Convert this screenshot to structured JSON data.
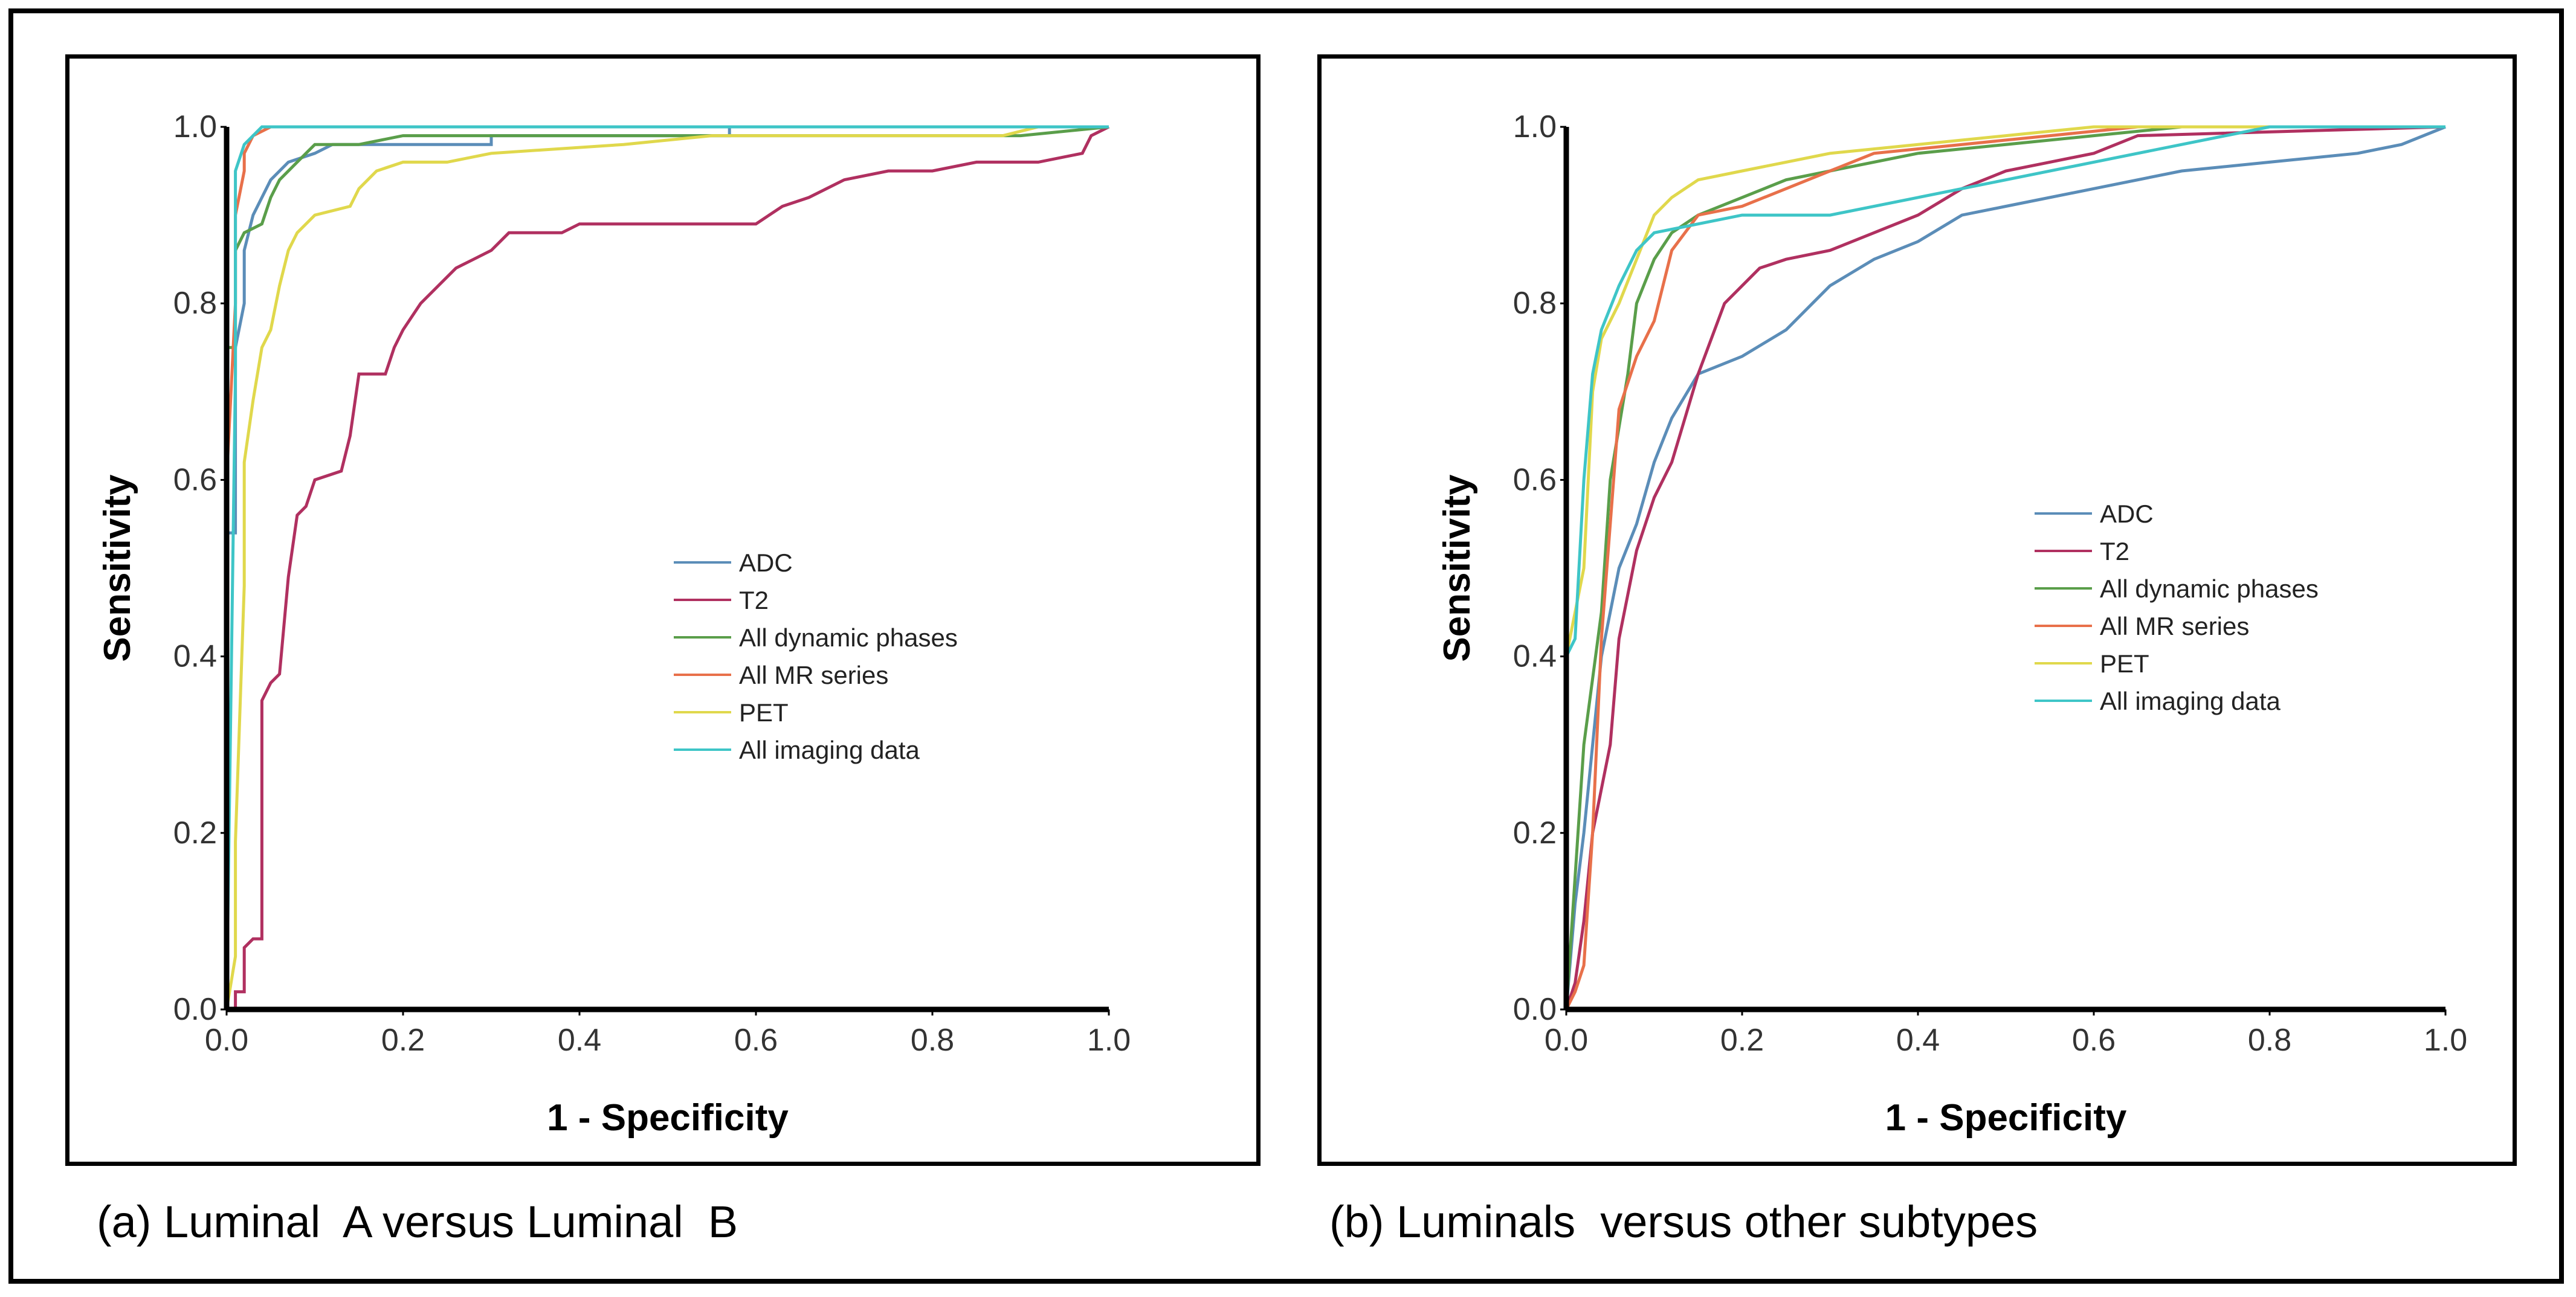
{
  "chart_data": [
    {
      "type": "line",
      "title": "",
      "caption": "(a) Luminal  A versus Luminal  B",
      "xlabel": "1 - Specificity",
      "ylabel": "Sensitivity",
      "xlim": [
        0,
        1
      ],
      "ylim": [
        0,
        1
      ],
      "xticks": [
        "0.0",
        "0.2",
        "0.4",
        "0.6",
        "0.8",
        "1.0"
      ],
      "yticks": [
        "0.0",
        "0.2",
        "0.4",
        "0.6",
        "0.8",
        "1.0"
      ],
      "legend_position": "center-right",
      "series": [
        {
          "name": "ADC",
          "color": "#5b8db8",
          "points": [
            [
              0,
              0
            ],
            [
              0,
              0.54
            ],
            [
              0.01,
              0.54
            ],
            [
              0.01,
              0.75
            ],
            [
              0.02,
              0.8
            ],
            [
              0.02,
              0.86
            ],
            [
              0.03,
              0.9
            ],
            [
              0.05,
              0.94
            ],
            [
              0.07,
              0.96
            ],
            [
              0.1,
              0.97
            ],
            [
              0.12,
              0.98
            ],
            [
              0.3,
              0.98
            ],
            [
              0.3,
              0.99
            ],
            [
              0.57,
              0.99
            ],
            [
              0.57,
              1.0
            ],
            [
              1,
              1
            ]
          ]
        },
        {
          "name": "T2",
          "color": "#b03060",
          "points": [
            [
              0,
              0
            ],
            [
              0.01,
              0
            ],
            [
              0.01,
              0.02
            ],
            [
              0.02,
              0.02
            ],
            [
              0.02,
              0.07
            ],
            [
              0.03,
              0.08
            ],
            [
              0.04,
              0.08
            ],
            [
              0.04,
              0.35
            ],
            [
              0.05,
              0.37
            ],
            [
              0.06,
              0.38
            ],
            [
              0.07,
              0.49
            ],
            [
              0.08,
              0.56
            ],
            [
              0.09,
              0.57
            ],
            [
              0.1,
              0.6
            ],
            [
              0.13,
              0.61
            ],
            [
              0.14,
              0.65
            ],
            [
              0.15,
              0.72
            ],
            [
              0.18,
              0.72
            ],
            [
              0.19,
              0.75
            ],
            [
              0.2,
              0.77
            ],
            [
              0.22,
              0.8
            ],
            [
              0.24,
              0.82
            ],
            [
              0.26,
              0.84
            ],
            [
              0.28,
              0.85
            ],
            [
              0.3,
              0.86
            ],
            [
              0.32,
              0.88
            ],
            [
              0.38,
              0.88
            ],
            [
              0.4,
              0.89
            ],
            [
              0.6,
              0.89
            ],
            [
              0.63,
              0.91
            ],
            [
              0.66,
              0.92
            ],
            [
              0.7,
              0.94
            ],
            [
              0.75,
              0.95
            ],
            [
              0.8,
              0.95
            ],
            [
              0.85,
              0.96
            ],
            [
              0.92,
              0.96
            ],
            [
              0.97,
              0.97
            ],
            [
              0.98,
              0.99
            ],
            [
              1,
              1
            ]
          ]
        },
        {
          "name": "All dynamic phases",
          "color": "#5a9e4a",
          "points": [
            [
              0,
              0
            ],
            [
              0,
              0.75
            ],
            [
              0.01,
              0.75
            ],
            [
              0.01,
              0.86
            ],
            [
              0.02,
              0.88
            ],
            [
              0.04,
              0.89
            ],
            [
              0.05,
              0.92
            ],
            [
              0.06,
              0.94
            ],
            [
              0.08,
              0.96
            ],
            [
              0.1,
              0.98
            ],
            [
              0.15,
              0.98
            ],
            [
              0.2,
              0.99
            ],
            [
              0.6,
              0.99
            ],
            [
              0.9,
              0.99
            ],
            [
              1,
              1
            ]
          ]
        },
        {
          "name": "All MR series",
          "color": "#e8704a",
          "points": [
            [
              0,
              0
            ],
            [
              0,
              0.6
            ],
            [
              0.01,
              0.8
            ],
            [
              0.01,
              0.9
            ],
            [
              0.02,
              0.95
            ],
            [
              0.02,
              0.97
            ],
            [
              0.03,
              0.99
            ],
            [
              0.05,
              1.0
            ],
            [
              1,
              1
            ]
          ]
        },
        {
          "name": "PET",
          "color": "#e0d84c",
          "points": [
            [
              0,
              0
            ],
            [
              0.01,
              0.06
            ],
            [
              0.01,
              0.19
            ],
            [
              0.02,
              0.48
            ],
            [
              0.02,
              0.62
            ],
            [
              0.03,
              0.69
            ],
            [
              0.04,
              0.75
            ],
            [
              0.05,
              0.77
            ],
            [
              0.06,
              0.82
            ],
            [
              0.07,
              0.86
            ],
            [
              0.08,
              0.88
            ],
            [
              0.1,
              0.9
            ],
            [
              0.14,
              0.91
            ],
            [
              0.15,
              0.93
            ],
            [
              0.17,
              0.95
            ],
            [
              0.2,
              0.96
            ],
            [
              0.25,
              0.96
            ],
            [
              0.3,
              0.97
            ],
            [
              0.45,
              0.98
            ],
            [
              0.55,
              0.99
            ],
            [
              0.88,
              0.99
            ],
            [
              0.92,
              1.0
            ],
            [
              1,
              1
            ]
          ]
        },
        {
          "name": "All imaging data",
          "color": "#3ec5c7",
          "points": [
            [
              0,
              0
            ],
            [
              0.01,
              0.72
            ],
            [
              0.01,
              0.95
            ],
            [
              0.02,
              0.98
            ],
            [
              0.03,
              0.99
            ],
            [
              0.04,
              1.0
            ],
            [
              1,
              1
            ]
          ]
        }
      ]
    },
    {
      "type": "line",
      "title": "",
      "caption": "(b) Luminals  versus other subtypes",
      "xlabel": "1 - Specificity",
      "ylabel": "Sensitivity",
      "xlim": [
        0,
        1
      ],
      "ylim": [
        0,
        1
      ],
      "xticks": [
        "0.0",
        "0.2",
        "0.4",
        "0.6",
        "0.8",
        "1.0"
      ],
      "yticks": [
        "0.0",
        "0.2",
        "0.4",
        "0.6",
        "0.8",
        "1.0"
      ],
      "legend_position": "center-right",
      "series": [
        {
          "name": "ADC",
          "color": "#5b8db8",
          "points": [
            [
              0,
              0
            ],
            [
              0.01,
              0.12
            ],
            [
              0.02,
              0.2
            ],
            [
              0.04,
              0.4
            ],
            [
              0.06,
              0.5
            ],
            [
              0.08,
              0.55
            ],
            [
              0.1,
              0.62
            ],
            [
              0.12,
              0.67
            ],
            [
              0.15,
              0.72
            ],
            [
              0.2,
              0.74
            ],
            [
              0.25,
              0.77
            ],
            [
              0.28,
              0.8
            ],
            [
              0.3,
              0.82
            ],
            [
              0.35,
              0.85
            ],
            [
              0.4,
              0.87
            ],
            [
              0.45,
              0.9
            ],
            [
              0.5,
              0.91
            ],
            [
              0.6,
              0.93
            ],
            [
              0.7,
              0.95
            ],
            [
              0.8,
              0.96
            ],
            [
              0.9,
              0.97
            ],
            [
              0.95,
              0.98
            ],
            [
              1,
              1
            ]
          ]
        },
        {
          "name": "T2",
          "color": "#b03060",
          "points": [
            [
              0,
              0
            ],
            [
              0.01,
              0.03
            ],
            [
              0.02,
              0.1
            ],
            [
              0.03,
              0.2
            ],
            [
              0.05,
              0.3
            ],
            [
              0.06,
              0.42
            ],
            [
              0.08,
              0.52
            ],
            [
              0.1,
              0.58
            ],
            [
              0.12,
              0.62
            ],
            [
              0.15,
              0.72
            ],
            [
              0.18,
              0.8
            ],
            [
              0.22,
              0.84
            ],
            [
              0.25,
              0.85
            ],
            [
              0.3,
              0.86
            ],
            [
              0.35,
              0.88
            ],
            [
              0.4,
              0.9
            ],
            [
              0.45,
              0.93
            ],
            [
              0.5,
              0.95
            ],
            [
              0.55,
              0.96
            ],
            [
              0.6,
              0.97
            ],
            [
              0.65,
              0.99
            ],
            [
              1,
              1
            ]
          ]
        },
        {
          "name": "All dynamic phases",
          "color": "#5a9e4a",
          "points": [
            [
              0,
              0
            ],
            [
              0.01,
              0.15
            ],
            [
              0.02,
              0.3
            ],
            [
              0.04,
              0.45
            ],
            [
              0.05,
              0.6
            ],
            [
              0.07,
              0.72
            ],
            [
              0.08,
              0.8
            ],
            [
              0.1,
              0.85
            ],
            [
              0.12,
              0.88
            ],
            [
              0.15,
              0.9
            ],
            [
              0.2,
              0.92
            ],
            [
              0.25,
              0.94
            ],
            [
              0.3,
              0.95
            ],
            [
              0.4,
              0.97
            ],
            [
              0.5,
              0.98
            ],
            [
              0.6,
              0.99
            ],
            [
              0.7,
              1.0
            ],
            [
              1,
              1
            ]
          ]
        },
        {
          "name": "All MR series",
          "color": "#e8704a",
          "points": [
            [
              0,
              0
            ],
            [
              0.01,
              0.02
            ],
            [
              0.02,
              0.05
            ],
            [
              0.03,
              0.2
            ],
            [
              0.04,
              0.42
            ],
            [
              0.05,
              0.55
            ],
            [
              0.06,
              0.68
            ],
            [
              0.08,
              0.74
            ],
            [
              0.1,
              0.78
            ],
            [
              0.12,
              0.86
            ],
            [
              0.15,
              0.9
            ],
            [
              0.2,
              0.91
            ],
            [
              0.25,
              0.93
            ],
            [
              0.3,
              0.95
            ],
            [
              0.35,
              0.97
            ],
            [
              0.45,
              0.98
            ],
            [
              0.55,
              0.99
            ],
            [
              0.65,
              1.0
            ],
            [
              1,
              1
            ]
          ]
        },
        {
          "name": "PET",
          "color": "#e0d84c",
          "points": [
            [
              0,
              0
            ],
            [
              0,
              0.4
            ],
            [
              0.01,
              0.45
            ],
            [
              0.02,
              0.5
            ],
            [
              0.03,
              0.7
            ],
            [
              0.04,
              0.76
            ],
            [
              0.06,
              0.8
            ],
            [
              0.08,
              0.85
            ],
            [
              0.1,
              0.9
            ],
            [
              0.12,
              0.92
            ],
            [
              0.15,
              0.94
            ],
            [
              0.2,
              0.95
            ],
            [
              0.25,
              0.96
            ],
            [
              0.3,
              0.97
            ],
            [
              0.4,
              0.98
            ],
            [
              0.5,
              0.99
            ],
            [
              0.6,
              1.0
            ],
            [
              1,
              1
            ]
          ]
        },
        {
          "name": "All imaging data",
          "color": "#3ec5c7",
          "points": [
            [
              0,
              0
            ],
            [
              0,
              0.4
            ],
            [
              0.01,
              0.42
            ],
            [
              0.02,
              0.6
            ],
            [
              0.03,
              0.72
            ],
            [
              0.04,
              0.77
            ],
            [
              0.06,
              0.82
            ],
            [
              0.08,
              0.86
            ],
            [
              0.1,
              0.88
            ],
            [
              0.15,
              0.89
            ],
            [
              0.2,
              0.9
            ],
            [
              0.3,
              0.9
            ],
            [
              0.4,
              0.92
            ],
            [
              0.5,
              0.94
            ],
            [
              0.6,
              0.96
            ],
            [
              0.7,
              0.98
            ],
            [
              0.8,
              1.0
            ],
            [
              1,
              1
            ]
          ]
        }
      ]
    }
  ]
}
